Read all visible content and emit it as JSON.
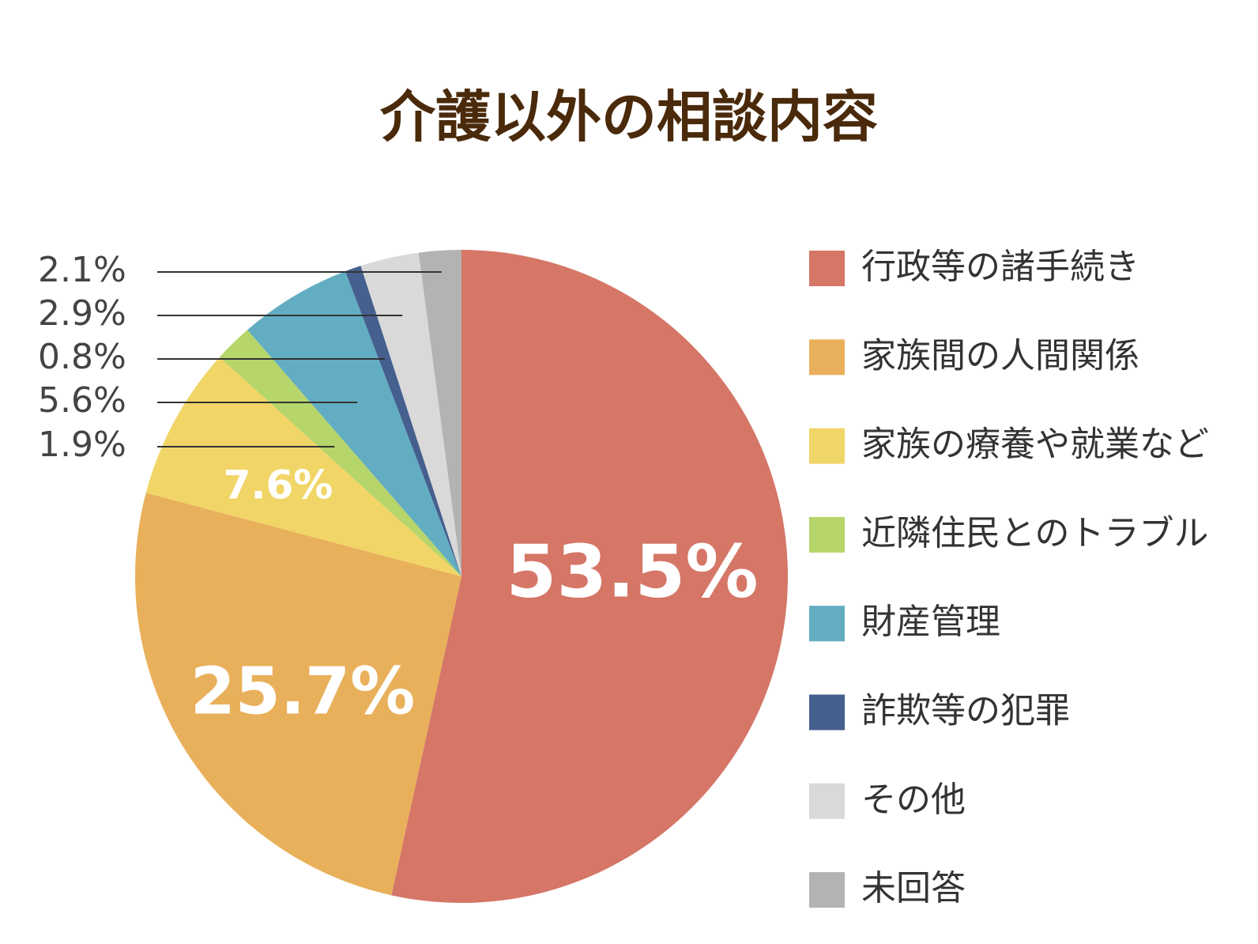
{
  "chart_data": {
    "type": "pie",
    "title": "介護以外の相談内容",
    "categories": [
      "行政等の諸手続き",
      "家族間の人間関係",
      "家族の療養や就業など",
      "近隣住民とのトラブル",
      "財産管理",
      "詐欺等の犯罪",
      "その他",
      "未回答"
    ],
    "values": [
      53.5,
      25.7,
      7.6,
      1.9,
      5.6,
      0.8,
      2.9,
      2.1
    ],
    "value_labels": [
      "53.5%",
      "25.7%",
      "7.6%",
      "1.9%",
      "5.6%",
      "0.8%",
      "2.9%",
      "2.1%"
    ],
    "colors": [
      "#d57667",
      "#e9b05b",
      "#f1d567",
      "#b6d56a",
      "#63adc2",
      "#455f8e",
      "#d9d9d9",
      "#b3b3b3"
    ],
    "legend": "right"
  }
}
